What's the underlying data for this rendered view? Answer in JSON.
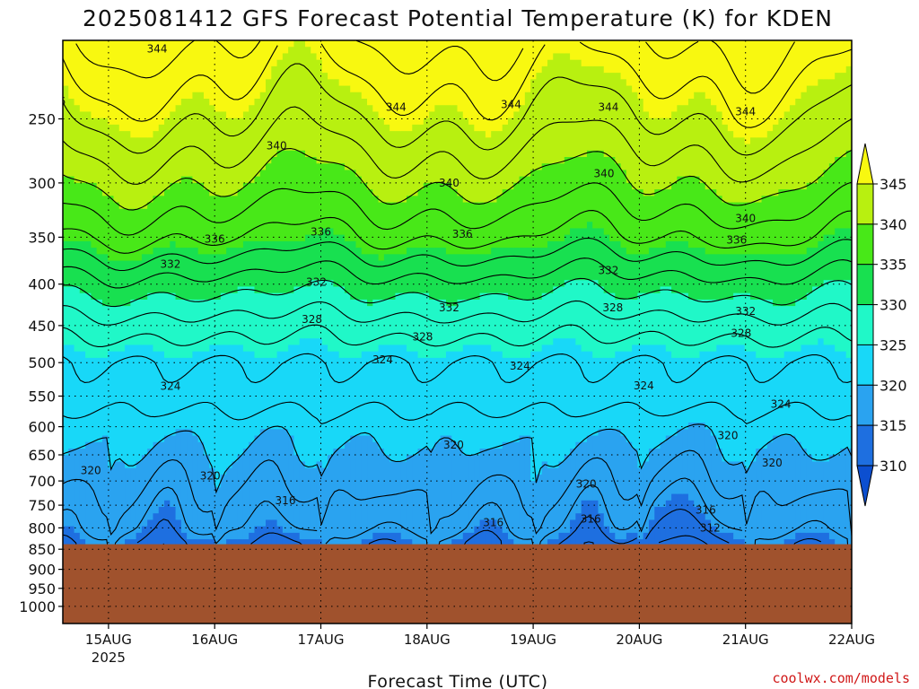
{
  "chart_data": {
    "type": "heatmap",
    "title": "2025081412 GFS Forecast Potential Temperature (K) for KDEN",
    "xlabel": "Forecast Time (UTC)",
    "ylabel": "",
    "credit": "coolwx.com/models",
    "x_ticks": [
      "15AUG",
      "16AUG",
      "17AUG",
      "18AUG",
      "19AUG",
      "20AUG",
      "21AUG",
      "22AUG"
    ],
    "x_year_label": "2025",
    "y_ticks": [
      "250",
      "300",
      "350",
      "400",
      "450",
      "500",
      "550",
      "600",
      "650",
      "700",
      "750",
      "800",
      "850",
      "900",
      "950",
      "1000"
    ],
    "ylim": [
      200,
      1050
    ],
    "y_scale": "log-pressure",
    "below_ground_pressure_hPa": 838,
    "below_ground_color": "#a0522d",
    "colorbar": {
      "levels": [
        310,
        315,
        320,
        325,
        330,
        335,
        340,
        345
      ],
      "colors": [
        "#1e6fe0",
        "#2aa3f0",
        "#18d8f8",
        "#20f8c8",
        "#18e050",
        "#48e818",
        "#b8f010",
        "#f8f810"
      ],
      "extend": "both"
    },
    "contour_levels": [
      308,
      310,
      312,
      314,
      316,
      318,
      320,
      322,
      324,
      326,
      328,
      330,
      332,
      334,
      336,
      338,
      340,
      342,
      344,
      346,
      348
    ],
    "profile_theta_K": {
      "pressure_hPa": [
        200,
        250,
        300,
        350,
        400,
        450,
        500,
        550,
        600,
        650,
        700,
        750,
        800,
        838
      ],
      "theta": [
        348,
        344,
        340,
        336,
        331,
        327,
        324,
        323,
        321,
        320,
        319,
        318,
        317,
        315
      ]
    },
    "contour_labels": [
      {
        "value": "344",
        "x": "2025-08-15T11",
        "p": 205
      },
      {
        "value": "336",
        "x": "2025-08-14T12",
        "p": 238
      },
      {
        "value": "344",
        "x": "2025-08-17T17",
        "p": 242
      },
      {
        "value": "344",
        "x": "2025-08-18T19",
        "p": 240
      },
      {
        "value": "344",
        "x": "2025-08-19T17",
        "p": 242
      },
      {
        "value": "344",
        "x": "2025-08-21T00",
        "p": 245
      },
      {
        "value": "340",
        "x": "2025-08-16T14",
        "p": 270
      },
      {
        "value": "332",
        "x": "2025-08-14T06",
        "p": 292
      },
      {
        "value": "340",
        "x": "2025-08-18T05",
        "p": 300
      },
      {
        "value": "340",
        "x": "2025-08-19T16",
        "p": 292
      },
      {
        "value": "340",
        "x": "2025-08-21T00",
        "p": 332
      },
      {
        "value": "336",
        "x": "2025-08-16T00",
        "p": 352
      },
      {
        "value": "336",
        "x": "2025-08-17T00",
        "p": 345
      },
      {
        "value": "336",
        "x": "2025-08-18T08",
        "p": 347
      },
      {
        "value": "336",
        "x": "2025-08-20T22",
        "p": 353
      },
      {
        "value": "332",
        "x": "2025-08-15T14",
        "p": 378
      },
      {
        "value": "332",
        "x": "2025-08-16T23",
        "p": 398
      },
      {
        "value": "332",
        "x": "2025-08-19T17",
        "p": 385
      },
      {
        "value": "332",
        "x": "2025-08-18T05",
        "p": 428
      },
      {
        "value": "328",
        "x": "2025-08-14T08",
        "p": 398
      },
      {
        "value": "328",
        "x": "2025-08-16T22",
        "p": 442
      },
      {
        "value": "328",
        "x": "2025-08-19T18",
        "p": 428
      },
      {
        "value": "328",
        "x": "2025-08-17T23",
        "p": 465
      },
      {
        "value": "332",
        "x": "2025-08-21T00",
        "p": 432
      },
      {
        "value": "328",
        "x": "2025-08-20T23",
        "p": 460
      },
      {
        "value": "324",
        "x": "2025-08-14T06",
        "p": 470
      },
      {
        "value": "324",
        "x": "2025-08-17T14",
        "p": 496
      },
      {
        "value": "324",
        "x": "2025-08-18T21",
        "p": 505
      },
      {
        "value": "324",
        "x": "2025-08-20T01",
        "p": 534
      },
      {
        "value": "324",
        "x": "2025-08-15T14",
        "p": 535
      },
      {
        "value": "324",
        "x": "2025-08-21T08",
        "p": 563
      },
      {
        "value": "320",
        "x": "2025-08-14T20",
        "p": 680
      },
      {
        "value": "320",
        "x": "2025-08-15T23",
        "p": 690
      },
      {
        "value": "320",
        "x": "2025-08-18T06",
        "p": 632
      },
      {
        "value": "320",
        "x": "2025-08-19T12",
        "p": 706
      },
      {
        "value": "320",
        "x": "2025-08-20T20",
        "p": 615
      },
      {
        "value": "320",
        "x": "2025-08-21T06",
        "p": 665
      },
      {
        "value": "316",
        "x": "2025-08-16T16",
        "p": 740
      },
      {
        "value": "316",
        "x": "2025-08-18T15",
        "p": 788
      },
      {
        "value": "316",
        "x": "2025-08-19T13",
        "p": 780
      },
      {
        "value": "316",
        "x": "2025-08-20T15",
        "p": 760
      },
      {
        "value": "312",
        "x": "2025-08-20T16",
        "p": 800
      }
    ]
  }
}
